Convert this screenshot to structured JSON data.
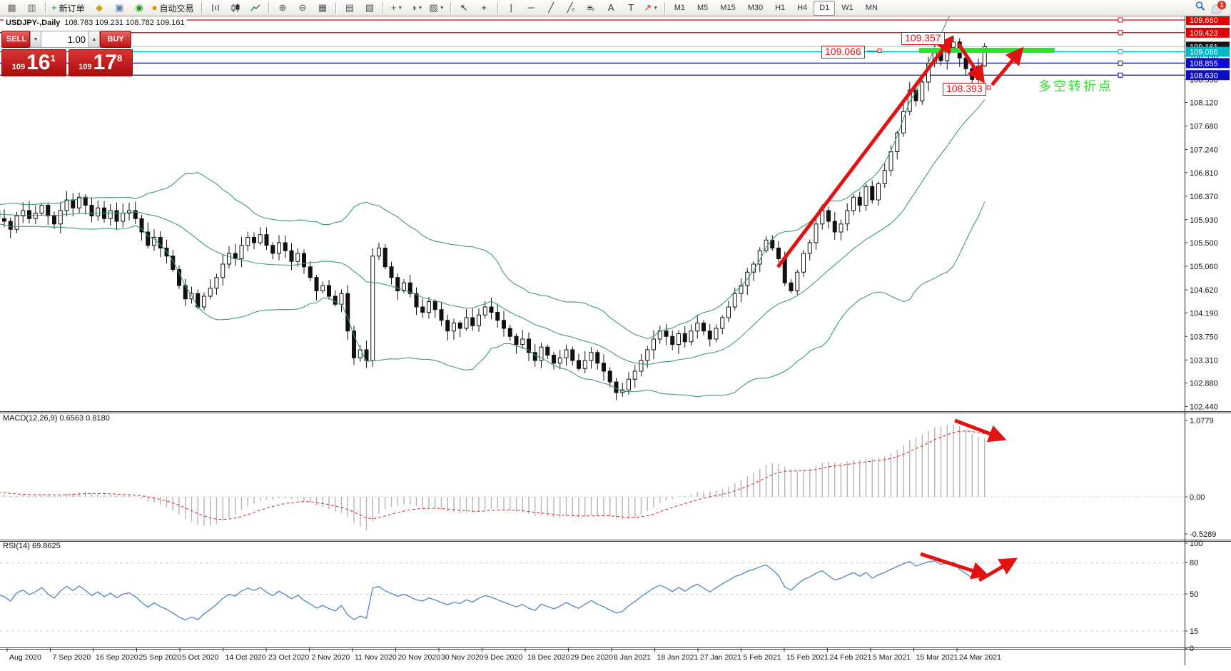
{
  "toolbar": {
    "buttons": [
      {
        "name": "chart-window-icon",
        "icon": "▩",
        "color": "#6b6b6b"
      },
      {
        "name": "tick-chart-icon",
        "icon": "▥",
        "color": "#6b6b6b"
      },
      {
        "sep": true
      },
      {
        "name": "new-order-button",
        "icon": "+",
        "color": "#189918",
        "label": "新订单"
      },
      {
        "name": "deposit-icon",
        "icon": "◆",
        "color": "#d4a017"
      },
      {
        "name": "virtual-hosting-icon",
        "icon": "▣",
        "color": "#5b7fa6"
      },
      {
        "name": "signals-icon",
        "icon": "◉",
        "color": "#189918"
      },
      {
        "name": "auto-trading-button",
        "icon": "●",
        "color": "#e08a00",
        "label": "自动交易"
      },
      {
        "sep": true
      },
      {
        "name": "bar-chart-button",
        "svg": "bars"
      },
      {
        "name": "candlestick-chart-button",
        "svg": "candles"
      },
      {
        "name": "line-chart-button",
        "svg": "line"
      },
      {
        "sep": true
      },
      {
        "name": "zoom-in-button",
        "icon": "⊕",
        "color": "#555"
      },
      {
        "name": "zoom-out-button",
        "icon": "⊖",
        "color": "#555"
      },
      {
        "name": "tile-windows-button",
        "icon": "▦",
        "color": "#555"
      },
      {
        "sep": true
      },
      {
        "name": "arrange-symbols-button",
        "icon": "▤",
        "color": "#555"
      },
      {
        "name": "arrange-windows-button",
        "icon": "▧",
        "color": "#555"
      },
      {
        "sep": true
      },
      {
        "name": "indicators-button",
        "icon": "+",
        "color": "#189918",
        "dropdown": true
      },
      {
        "name": "periods-button",
        "icon": "◑",
        "color": "#555",
        "dropdown": true
      },
      {
        "name": "templates-button",
        "icon": "▨",
        "color": "#555",
        "dropdown": true
      },
      {
        "sep": true
      },
      {
        "name": "cursor-button",
        "icon": "↖",
        "color": "#333"
      },
      {
        "name": "crosshair-button",
        "icon": "+",
        "color": "#333"
      },
      {
        "sep": true
      },
      {
        "name": "vertical-line-button",
        "icon": "|",
        "color": "#333"
      },
      {
        "name": "horizontal-line-button",
        "icon": "─",
        "color": "#333"
      },
      {
        "name": "trendline-button",
        "icon": "╱",
        "color": "#333"
      },
      {
        "name": "equidistant-channel-button",
        "icon": "╱",
        "color": "#333",
        "sub": "E"
      },
      {
        "name": "fibonacci-button",
        "icon": "≡",
        "color": "#333",
        "sub": "F"
      },
      {
        "name": "text-button",
        "icon": "A",
        "color": "#333"
      },
      {
        "name": "text-label-button",
        "icon": "T",
        "color": "#333"
      },
      {
        "name": "arrows-button",
        "icon": "↗",
        "color": "#c03030",
        "dropdown": true
      },
      {
        "sep": true
      }
    ],
    "timeframes": [
      "M1",
      "M5",
      "M15",
      "M30",
      "H1",
      "H4",
      "D1",
      "W1",
      "MN"
    ],
    "active_timeframe": "D1",
    "notification_count": "1"
  },
  "chart": {
    "title": "USDJPY-,Daily",
    "ohlc": "108.783 109.231 108.782 109.161"
  },
  "trade_panel": {
    "sell_label": "SELL",
    "buy_label": "BUY",
    "lot_size": "1.00",
    "sell_small": "109",
    "sell_big": "16",
    "sell_sup": "1",
    "buy_small": "109",
    "buy_big": "17",
    "buy_sup": "8"
  },
  "annotations": {
    "peak_label": "109.357",
    "level_label": "109.066",
    "low_label": "108.393",
    "turning_point": "多空转折点"
  },
  "panes": {
    "macd": {
      "label": "MACD(12,26,9) 0.6563 0.8180",
      "scale": [
        "1.0779",
        "0.00",
        "-0.5289"
      ]
    },
    "rsi": {
      "label": "RSI(14) 69.8625",
      "scale": [
        "100",
        "80",
        "50",
        "15",
        "0"
      ],
      "levels": [
        80,
        50,
        15
      ]
    }
  },
  "price_scale": {
    "current": {
      "label": "109.161",
      "price": 109.161,
      "bg": "#151515"
    },
    "levels": [
      {
        "label": "109.660",
        "price": 109.66,
        "color": "#dd0000"
      },
      {
        "label": "109.423",
        "price": 109.423,
        "color": "#dd0000"
      },
      {
        "label": "109.066",
        "price": 109.066,
        "color": "#00b8c8"
      },
      {
        "label": "108.855",
        "price": 108.855,
        "color": "#0d0dc4"
      },
      {
        "label": "108.630",
        "price": 108.63,
        "color": "#0d0dc4"
      }
    ],
    "ticks": [
      "108.990",
      "108.550",
      "108.120",
      "107.680",
      "107.240",
      "106.810",
      "106.370",
      "105.930",
      "105.500",
      "105.060",
      "104.620",
      "104.190",
      "103.750",
      "103.310",
      "102.880",
      "102.440"
    ]
  },
  "date_axis": [
    "Aug 2020",
    "7 Sep 2020",
    "16 Sep 2020",
    "25 Sep 2020",
    "5 Oct 2020",
    "14 Oct 2020",
    "23 Oct 2020",
    "2 Nov 2020",
    "11 Nov 2020",
    "20 Nov 2020",
    "30 Nov 2020",
    "9 Dec 2020",
    "18 Dec 2020",
    "29 Dec 2020",
    "8 Jan 2021",
    "18 Jan 2021",
    "27 Jan 2021",
    "5 Feb 2021",
    "15 Feb 2021",
    "24 Feb 2021",
    "5 Mar 2021",
    "15 Mar 2021",
    "24 Mar 2021"
  ],
  "chart_data": {
    "type": "candlestick",
    "symbol": "USDJPY",
    "timeframe": "Daily",
    "last_candle": {
      "open": 108.783,
      "high": 109.231,
      "low": 108.782,
      "close": 109.161
    },
    "indicators": [
      {
        "name": "Bollinger Bands",
        "period": 20,
        "deviation": 2,
        "color": "#3d9d68"
      },
      {
        "name": "MACD",
        "fast": 12,
        "slow": 26,
        "signal": 9,
        "values": [
          0.6563,
          0.818
        ]
      },
      {
        "name": "RSI",
        "period": 14,
        "value": 69.8625
      }
    ],
    "horizontal_levels": [
      109.66,
      109.423,
      109.066,
      108.855,
      108.63
    ],
    "annotation_prices": {
      "peak": 109.357,
      "resistance": 109.066,
      "pullback_low": 108.393
    },
    "warmup_closes": [
      105.6,
      105.75,
      105.9,
      105.8,
      106.0,
      106.1,
      105.95,
      105.85,
      106.05,
      106.15,
      106.0,
      105.9,
      106.1,
      106.2,
      106.05,
      105.95,
      106.1,
      106.0,
      105.9,
      106.05,
      105.95,
      106.1,
      106.2,
      106.05,
      106.15,
      106.0,
      105.9,
      106.0,
      106.1,
      105.95
    ],
    "closes": [
      105.9,
      105.75,
      106.0,
      106.1,
      105.95,
      106.05,
      106.2,
      106.0,
      105.85,
      106.1,
      106.3,
      106.15,
      106.35,
      106.2,
      106.0,
      106.15,
      105.95,
      106.1,
      105.9,
      106.05,
      106.1,
      105.95,
      105.7,
      105.45,
      105.6,
      105.4,
      105.25,
      105.0,
      104.7,
      104.45,
      104.55,
      104.3,
      104.5,
      104.65,
      104.85,
      105.1,
      105.3,
      105.2,
      105.45,
      105.6,
      105.5,
      105.65,
      105.45,
      105.3,
      105.5,
      105.35,
      105.15,
      105.3,
      105.05,
      104.85,
      104.6,
      104.7,
      104.5,
      104.35,
      104.55,
      103.85,
      103.35,
      103.5,
      103.3,
      105.25,
      105.4,
      105.05,
      104.85,
      104.6,
      104.75,
      104.55,
      104.3,
      104.2,
      104.4,
      104.25,
      104.05,
      103.85,
      104.0,
      103.9,
      104.1,
      103.95,
      104.15,
      104.3,
      104.2,
      104.05,
      103.9,
      103.75,
      103.6,
      103.7,
      103.45,
      103.3,
      103.55,
      103.4,
      103.25,
      103.35,
      103.5,
      103.3,
      103.15,
      103.3,
      103.45,
      103.25,
      103.1,
      102.9,
      102.7,
      102.75,
      102.95,
      103.1,
      103.3,
      103.5,
      103.7,
      103.85,
      103.75,
      103.6,
      103.8,
      103.65,
      103.85,
      104.0,
      103.85,
      103.7,
      103.9,
      104.1,
      104.3,
      104.55,
      104.7,
      104.95,
      105.1,
      105.35,
      105.55,
      105.4,
      105.2,
      104.75,
      104.6,
      104.95,
      105.3,
      105.5,
      105.85,
      106.1,
      105.9,
      105.7,
      105.85,
      106.1,
      106.35,
      106.2,
      106.55,
      106.3,
      106.6,
      106.85,
      107.2,
      107.55,
      107.95,
      108.35,
      108.15,
      108.5,
      108.85,
      109.05,
      108.9,
      109.15,
      109.25,
      108.95,
      108.75,
      108.55,
      108.8,
      109.16
    ],
    "wick_overrides": {
      "152": {
        "h": 109.357
      },
      "155": {
        "l": 108.393
      },
      "157": {
        "h": 109.231,
        "l": 108.782
      }
    }
  }
}
